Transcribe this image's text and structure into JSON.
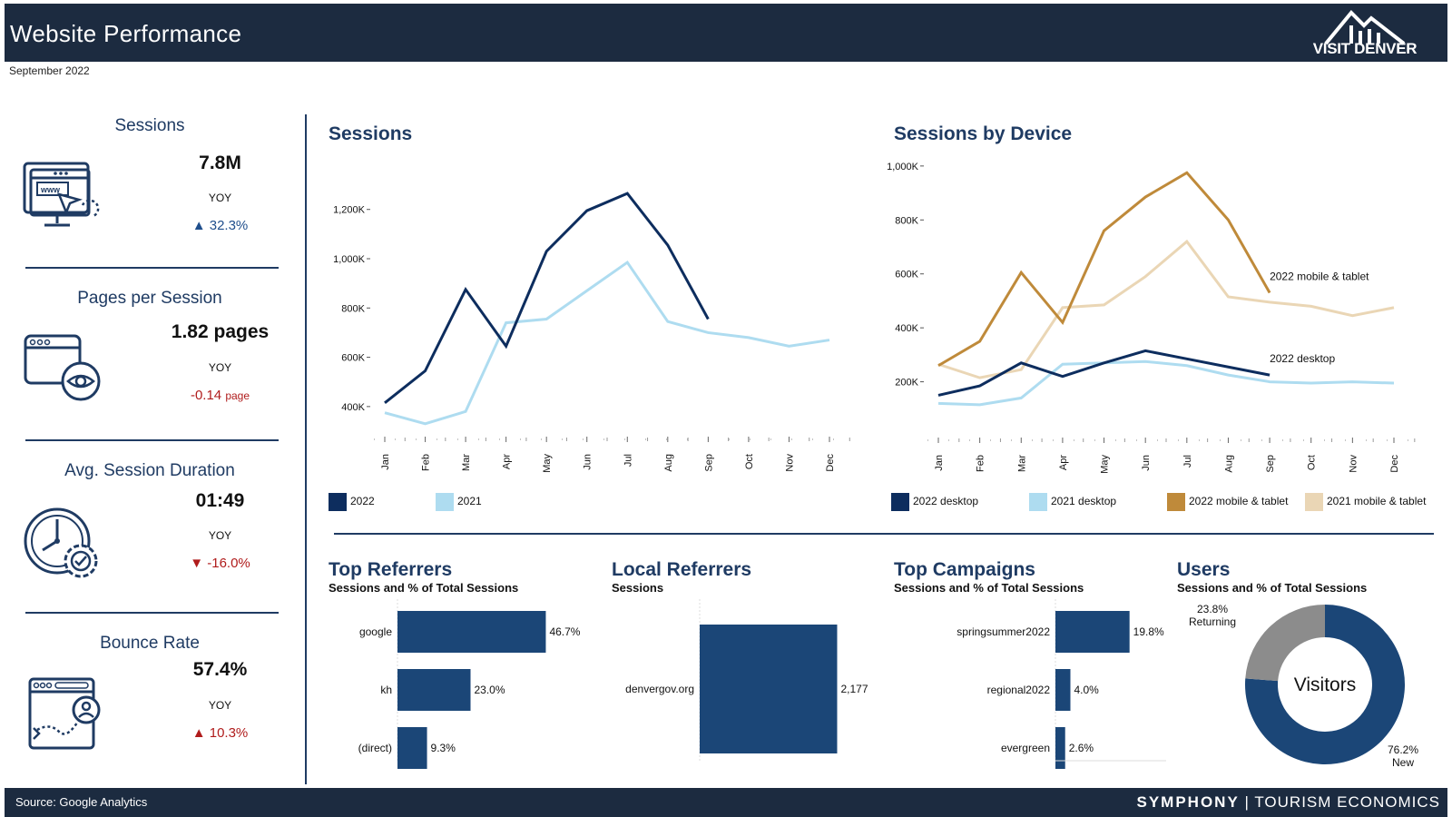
{
  "header": {
    "title": "Website Performance",
    "logo_text": "VISIT DENVER",
    "period": "September 2022"
  },
  "kpis": [
    {
      "name": "Sessions",
      "value": "7.8M",
      "yoy_label": "YOY",
      "change": "▲ 32.3%",
      "change_unit": "",
      "icon": "website-browser-icon",
      "color": "#1f4e8c"
    },
    {
      "name": "Pages per Session",
      "value": "1.82 pages",
      "yoy_label": "YOY",
      "change": "-0.14",
      "change_unit": "page",
      "icon": "browser-eye-icon",
      "color": "#b01c1c"
    },
    {
      "name": "Avg. Session Duration",
      "value": "01:49",
      "yoy_label": "YOY",
      "change": "▼ -16.0%",
      "change_unit": "",
      "icon": "clock-gear-icon",
      "color": "#b01c1c"
    },
    {
      "name": "Bounce Rate",
      "value": "57.4%",
      "yoy_label": "YOY",
      "change": "▲ 10.3%",
      "change_unit": "",
      "icon": "browser-user-icon",
      "color": "#b01c1c"
    }
  ],
  "charts": {
    "sessions": {
      "title": "Sessions",
      "legend": [
        "2022",
        "2021"
      ]
    },
    "device": {
      "title": "Sessions by Device",
      "legend": [
        "2022 desktop",
        "2021 desktop",
        "2022 mobile & tablet",
        "2021 mobile & tablet"
      ]
    },
    "top_referrers": {
      "title": "Top Referrers",
      "subtitle": "Sessions and % of Total Sessions"
    },
    "local_referrers": {
      "title": "Local Referrers",
      "subtitle": "Sessions"
    },
    "top_campaigns": {
      "title": "Top Campaigns",
      "subtitle": "Sessions and % of Total Sessions"
    },
    "users": {
      "title": "Users",
      "subtitle": "Sessions and % of Total Sessions"
    }
  },
  "footer": {
    "source": "Source: Google Analytics",
    "brand_bold": "SYMPHONY",
    "brand_rest": "TOURISM ECONOMICS"
  },
  "colors": {
    "navy": "#0d2d5e",
    "light_blue": "#aedcf0",
    "gold": "#bf8a3a",
    "sand": "#ead6b5",
    "bar": "#1b4677",
    "gray": "#8c8c8c"
  },
  "chart_data": [
    {
      "id": "sessions",
      "type": "line",
      "title": "Sessions",
      "categories": [
        "Jan",
        "Feb",
        "Mar",
        "Apr",
        "May",
        "Jun",
        "Jul",
        "Aug",
        "Sep",
        "Oct",
        "Nov",
        "Dec"
      ],
      "ylim": [
        300000,
        1350000
      ],
      "yticks": [
        400000,
        600000,
        800000,
        1000000,
        1200000
      ],
      "ytick_labels": [
        "400K",
        "600K",
        "800K",
        "1,000K",
        "1,200K"
      ],
      "series": [
        {
          "name": "2022",
          "values": [
            415000,
            545000,
            875000,
            645000,
            1030000,
            1195000,
            1265000,
            1055000,
            755000,
            null,
            null,
            null
          ]
        },
        {
          "name": "2021",
          "values": [
            375000,
            330000,
            380000,
            740000,
            755000,
            870000,
            985000,
            745000,
            700000,
            680000,
            645000,
            670000
          ]
        }
      ]
    },
    {
      "id": "device",
      "type": "line",
      "title": "Sessions by Device",
      "categories": [
        "Jan",
        "Feb",
        "Mar",
        "Apr",
        "May",
        "Jun",
        "Jul",
        "Aug",
        "Sep",
        "Oct",
        "Nov",
        "Dec"
      ],
      "ylim": [
        0,
        1050000
      ],
      "yticks": [
        200000,
        400000,
        600000,
        800000,
        1000000
      ],
      "ytick_labels": [
        "200K",
        "400K",
        "600K",
        "800K",
        "1,000K"
      ],
      "series": [
        {
          "name": "2022 desktop",
          "values": [
            150000,
            185000,
            270000,
            220000,
            270000,
            315000,
            285000,
            255000,
            225000,
            null,
            null,
            null
          ],
          "label": "2022 desktop"
        },
        {
          "name": "2021 desktop",
          "values": [
            120000,
            115000,
            140000,
            265000,
            270000,
            275000,
            260000,
            225000,
            200000,
            195000,
            200000,
            195000
          ]
        },
        {
          "name": "2022 mobile & tablet",
          "values": [
            260000,
            350000,
            605000,
            420000,
            760000,
            885000,
            975000,
            800000,
            530000,
            null,
            null,
            null
          ],
          "label": "2022 mobile & tablet"
        },
        {
          "name": "2021 mobile & tablet",
          "values": [
            265000,
            215000,
            245000,
            475000,
            485000,
            590000,
            720000,
            515000,
            495000,
            480000,
            445000,
            475000
          ]
        }
      ]
    },
    {
      "id": "top_referrers",
      "type": "bar",
      "title": "Top Referrers",
      "categories": [
        "google",
        "kh",
        "(direct)"
      ],
      "values": [
        46.7,
        23.0,
        9.3
      ],
      "labels": [
        "46.7%",
        "23.0%",
        "9.3%"
      ],
      "xlim": [
        0,
        60
      ]
    },
    {
      "id": "local_referrers",
      "type": "bar",
      "title": "Local Referrers",
      "categories": [
        "denvergov.org"
      ],
      "values": [
        2177
      ],
      "labels": [
        "2,177"
      ],
      "xlim": [
        0,
        2400
      ]
    },
    {
      "id": "top_campaigns",
      "type": "bar",
      "title": "Top Campaigns",
      "categories": [
        "springsummer2022",
        "regional2022",
        "evergreen"
      ],
      "values": [
        19.8,
        4.0,
        2.6
      ],
      "labels": [
        "19.8%",
        "4.0%",
        "2.6%"
      ],
      "xlim": [
        0,
        32
      ]
    },
    {
      "id": "users",
      "type": "pie",
      "title": "Users",
      "center_label": "Visitors",
      "slices": [
        {
          "name": "New",
          "value": 76.2,
          "label": "76.2%"
        },
        {
          "name": "Returning",
          "value": 23.8,
          "label": "23.8%"
        }
      ]
    }
  ]
}
